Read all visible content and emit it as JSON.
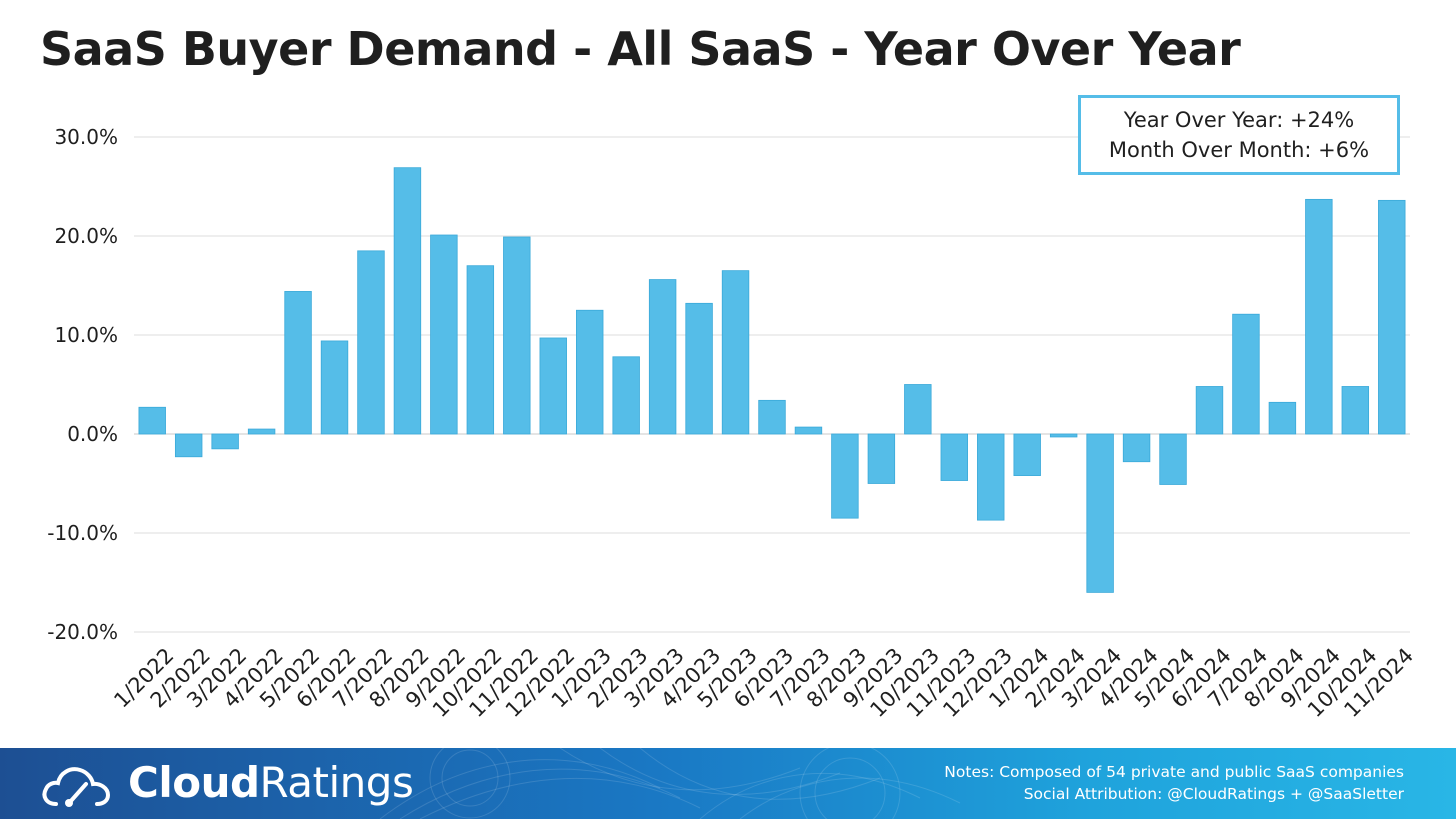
{
  "chart_data": {
    "type": "bar",
    "title": "SaaS Buyer Demand - All SaaS - Year Over Year",
    "categories": [
      "1/2022",
      "2/2022",
      "3/2022",
      "4/2022",
      "5/2022",
      "6/2022",
      "7/2022",
      "8/2022",
      "9/2022",
      "10/2022",
      "11/2022",
      "12/2022",
      "1/2023",
      "2/2023",
      "3/2023",
      "4/2023",
      "5/2023",
      "6/2023",
      "7/2023",
      "8/2023",
      "9/2023",
      "10/2023",
      "11/2023",
      "12/2023",
      "1/2024",
      "2/2024",
      "3/2024",
      "4/2024",
      "5/2024",
      "6/2024",
      "7/2024",
      "8/2024",
      "9/2024",
      "10/2024",
      "11/2024"
    ],
    "values": [
      2.7,
      -2.3,
      -1.5,
      0.5,
      14.4,
      9.4,
      18.5,
      26.9,
      20.1,
      17.0,
      19.9,
      9.7,
      12.5,
      7.8,
      15.6,
      13.2,
      16.5,
      3.4,
      0.7,
      -8.5,
      -5.0,
      5.0,
      -4.7,
      -8.7,
      -4.2,
      -0.3,
      -16.0,
      -2.8,
      -5.1,
      4.8,
      12.1,
      3.2,
      23.7,
      4.8,
      23.6
    ],
    "ylim": [
      -20,
      30
    ],
    "yticks": [
      -20,
      -10,
      0,
      10,
      20,
      30
    ],
    "ytick_labels": [
      "-20.0%",
      "-10.0%",
      "0.0%",
      "10.0%",
      "20.0%",
      "30.0%"
    ],
    "grid": "horizontal",
    "bar_color": "#55bde8",
    "xlabel": "",
    "ylabel": ""
  },
  "summary": {
    "yoy": "Year Over Year: +24%",
    "mom": "Month Over Month: +6%"
  },
  "footer": {
    "logo_bold": "Cloud",
    "logo_regular": "Ratings",
    "logo_icon": "cloud-gauge-icon",
    "note_line1": "Notes: Composed of 54 private and public SaaS companies",
    "note_line2": "Social Attribution: @CloudRatings + @SaaSletter"
  }
}
